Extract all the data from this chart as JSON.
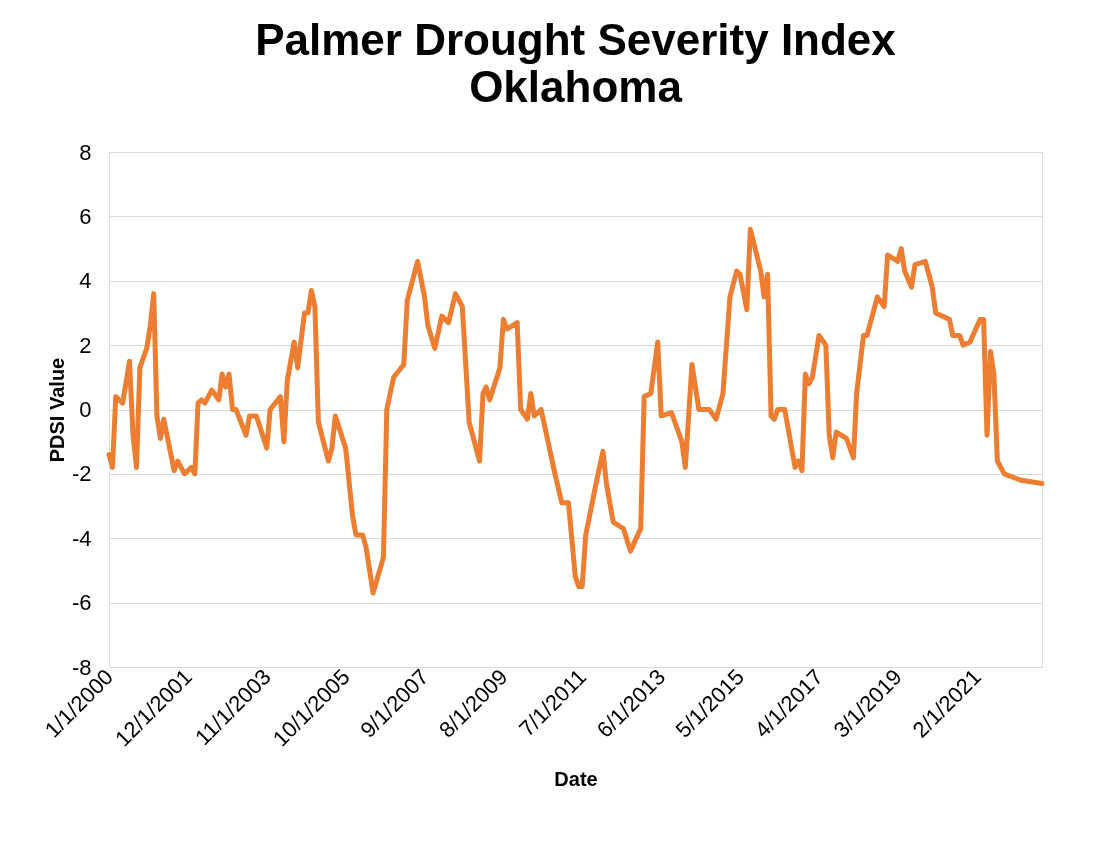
{
  "chart_data": {
    "type": "line",
    "title": "Palmer Drought Severity Index",
    "subtitle": "Oklahoma",
    "xlabel": "Date",
    "ylabel": "PDSI Value",
    "x": [
      "2000-01",
      "2000-02",
      "2000-03",
      "2000-05",
      "2000-07",
      "2000-08",
      "2000-09",
      "2000-10",
      "2000-12",
      "2001-01",
      "2001-02",
      "2001-03",
      "2001-04",
      "2001-05",
      "2001-08",
      "2001-09",
      "2001-11",
      "2002-01",
      "2002-02",
      "2002-03",
      "2002-04",
      "2002-05",
      "2002-07",
      "2002-09",
      "2002-10",
      "2002-11",
      "2002-12",
      "2003-01",
      "2003-02",
      "2003-05",
      "2003-06",
      "2003-08",
      "2003-11",
      "2003-12",
      "2004-03",
      "2004-04",
      "2004-05",
      "2004-07",
      "2004-08",
      "2004-10",
      "2004-11",
      "2004-12",
      "2005-01",
      "2005-02",
      "2005-05",
      "2005-06",
      "2005-07",
      "2005-10",
      "2005-12",
      "2006-01",
      "2006-03",
      "2006-04",
      "2006-06",
      "2006-09",
      "2006-10",
      "2006-12",
      "2007-03",
      "2007-04",
      "2007-07",
      "2007-09",
      "2007-10",
      "2007-12",
      "2008-02",
      "2008-04",
      "2008-06",
      "2008-08",
      "2008-10",
      "2009-01",
      "2009-02",
      "2009-03",
      "2009-04",
      "2009-07",
      "2009-08",
      "2009-09",
      "2009-12",
      "2010-01",
      "2010-03",
      "2010-04",
      "2010-05",
      "2010-07",
      "2010-09",
      "2010-11",
      "2011-01",
      "2011-03",
      "2011-05",
      "2011-06",
      "2011-07",
      "2011-08",
      "2011-11",
      "2012-01",
      "2012-02",
      "2012-04",
      "2012-07",
      "2012-09",
      "2012-12",
      "2013-01",
      "2013-03",
      "2013-05",
      "2013-06",
      "2013-09",
      "2013-12",
      "2014-01",
      "2014-03",
      "2014-05",
      "2014-08",
      "2014-10",
      "2014-12",
      "2015-02",
      "2015-04",
      "2015-05",
      "2015-07",
      "2015-08",
      "2015-11",
      "2015-12",
      "2016-01",
      "2016-02",
      "2016-03",
      "2016-04",
      "2016-06",
      "2016-09",
      "2016-10",
      "2016-11",
      "2016-12",
      "2017-01",
      "2017-02",
      "2017-04",
      "2017-06",
      "2017-07",
      "2017-08",
      "2017-09",
      "2017-12",
      "2018-02",
      "2018-03",
      "2018-05",
      "2018-06",
      "2018-09",
      "2018-11",
      "2018-12",
      "2019-03",
      "2019-04",
      "2019-05",
      "2019-07",
      "2019-08",
      "2019-11",
      "2020-01",
      "2020-02",
      "2020-06",
      "2020-07",
      "2020-09",
      "2020-10",
      "2020-12",
      "2021-03",
      "2021-04",
      "2021-05",
      "2021-06",
      "2021-07",
      "2021-08",
      "2021-10",
      "2022-03",
      "2022-09"
    ],
    "series": [
      {
        "color": "#ed7d31",
        "values": [
          -1.4,
          -1.8,
          0.4,
          0.2,
          1.5,
          -0.8,
          -1.8,
          1.3,
          1.9,
          2.6,
          3.6,
          -0.2,
          -0.9,
          -0.3,
          -1.9,
          -1.6,
          -2.0,
          -1.8,
          -2.0,
          0.2,
          0.3,
          0.2,
          0.6,
          0.3,
          1.1,
          0.7,
          1.1,
          0,
          0,
          -0.8,
          -0.2,
          -0.2,
          -1.2,
          0,
          0.4,
          -1.0,
          0.9,
          2.1,
          1.3,
          3.0,
          3.0,
          3.7,
          3.2,
          -0.4,
          -1.6,
          -1.2,
          -0.2,
          -1.2,
          -3.3,
          -3.9,
          -3.9,
          -4.3,
          -5.7,
          -4.6,
          0,
          1.0,
          1.4,
          3.4,
          4.6,
          3.5,
          2.6,
          1.9,
          2.9,
          2.7,
          3.6,
          3.2,
          -0.4,
          -1.6,
          0.5,
          0.7,
          0.3,
          1.3,
          2.8,
          2.5,
          2.7,
          0,
          -0.3,
          0.5,
          -0.2,
          0,
          -1.0,
          -2.0,
          -2.9,
          -2.9,
          -5.2,
          -5.5,
          -5.5,
          -3.9,
          -2.3,
          -1.3,
          -2.3,
          -3.5,
          -3.7,
          -4.4,
          -3.7,
          0.4,
          0.5,
          2.1,
          -0.2,
          -0.1,
          -1.0,
          -1.8,
          1.4,
          0,
          0,
          -0.3,
          0.5,
          3.5,
          4.3,
          4.2,
          3.1,
          5.6,
          4.3,
          3.5,
          4.2,
          -0.2,
          -0.3,
          0,
          0,
          -1.8,
          -1.6,
          -1.9,
          1.1,
          0.8,
          1.0,
          2.3,
          2.0,
          -0.8,
          -1.5,
          -0.7,
          -0.9,
          -1.5,
          0.5,
          2.3,
          2.3,
          3.5,
          3.2,
          4.8,
          4.6,
          5.0,
          4.3,
          3.8,
          4.5,
          4.6,
          3.8,
          3.0,
          2.8,
          2.3,
          2.3,
          2.0,
          2.1,
          2.8,
          2.8,
          -0.8,
          1.8,
          1.1,
          -1.6,
          -2.0,
          -2.2,
          -2.3
        ]
      }
    ],
    "xlim": [
      "2000-01-01",
      "2022-09-01"
    ],
    "xticks": [
      {
        "value": "2000-01-01",
        "label": "1/1/2000"
      },
      {
        "value": "2001-12-01",
        "label": "12/1/2001"
      },
      {
        "value": "2003-11-01",
        "label": "11/1/2003"
      },
      {
        "value": "2005-10-01",
        "label": "10/1/2005"
      },
      {
        "value": "2007-09-01",
        "label": "9/1/2007"
      },
      {
        "value": "2009-08-01",
        "label": "8/1/2009"
      },
      {
        "value": "2011-07-01",
        "label": "7/1/2011"
      },
      {
        "value": "2013-06-01",
        "label": "6/1/2013"
      },
      {
        "value": "2015-05-01",
        "label": "5/1/2015"
      },
      {
        "value": "2017-04-01",
        "label": "4/1/2017"
      },
      {
        "value": "2019-03-01",
        "label": "3/1/2019"
      },
      {
        "value": "2021-02-01",
        "label": "2/1/2021"
      }
    ],
    "ylim": [
      -8,
      8
    ],
    "yticks": [
      -8,
      -6,
      -4,
      -2,
      0,
      2,
      4,
      6,
      8
    ],
    "grid": "y",
    "legend": false,
    "marker": "none",
    "line_style": "solid"
  }
}
